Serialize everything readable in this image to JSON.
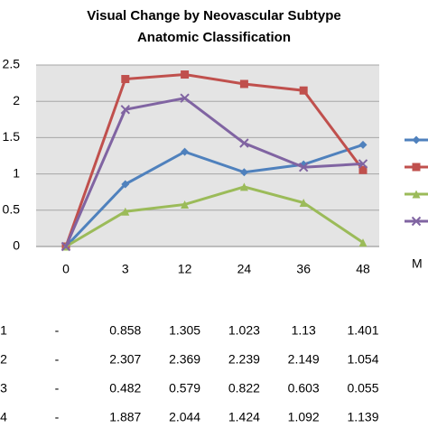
{
  "chart_data": {
    "type": "line",
    "title": "Visual Change by Neovascular Subtype",
    "subtitle": "Anatomic Classification",
    "x_label": "M",
    "categories": [
      "0",
      "3",
      "12",
      "24",
      "36",
      "48"
    ],
    "ylim": [
      0,
      2.5
    ],
    "yticks": [
      0,
      0.5,
      1,
      1.5,
      2,
      2.5
    ],
    "grid": true,
    "series": [
      {
        "name": "1",
        "color": "#4f81bd",
        "marker": "diamond",
        "values": [
          0,
          0.858,
          1.305,
          1.023,
          1.13,
          1.401
        ],
        "value_labels": [
          "-",
          "0.858",
          "1.305",
          "1.023",
          "1.13",
          "1.401"
        ]
      },
      {
        "name": "2",
        "color": "#c0504d",
        "marker": "square",
        "values": [
          0,
          2.307,
          2.369,
          2.239,
          2.149,
          1.054
        ],
        "value_labels": [
          "-",
          "2.307",
          "2.369",
          "2.239",
          "2.149",
          "1.054"
        ]
      },
      {
        "name": "3",
        "color": "#9bbb59",
        "marker": "triangle",
        "values": [
          0,
          0.482,
          0.579,
          0.822,
          0.603,
          0.055
        ],
        "value_labels": [
          "-",
          "0.482",
          "0.579",
          "0.822",
          "0.603",
          "0.055"
        ]
      },
      {
        "name": "4",
        "color": "#8064a2",
        "marker": "x",
        "values": [
          0,
          1.887,
          2.044,
          1.424,
          1.092,
          1.139
        ],
        "value_labels": [
          "-",
          "1.887",
          "2.044",
          "1.424",
          "1.092",
          "1.139"
        ]
      }
    ]
  }
}
